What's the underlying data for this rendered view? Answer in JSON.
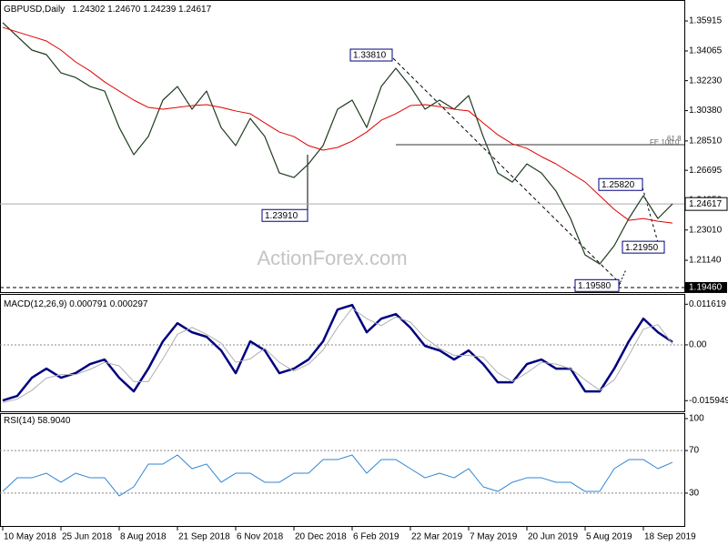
{
  "chart_data": [
    {
      "type": "line",
      "title": "GBPUSD,Daily",
      "subtitle": "1.24302 1.24670 1.24239 1.24617",
      "watermark": "ActionForex.com",
      "ylim": [
        1.1912,
        1.3721
      ],
      "yticks": [
        1.35915,
        1.34065,
        {
          "value": 1.3223,
          "label": "1.32230"
        },
        {
          "value": 1.3038,
          "label": "1.30380"
        },
        {
          "value": 1.2851,
          "label": "1.28510"
        },
        1.26695,
        {
          "value": 1.2485,
          "label": "1.24850"
        },
        {
          "value": 1.2301,
          "label": "1.23010"
        },
        {
          "value": 1.2114,
          "label": "1.21140"
        },
        {
          "value": 1.1946,
          "label": "1.19460"
        }
      ],
      "level_lines": [
        1.1946
      ],
      "last_price": 1.24617,
      "fe_level": {
        "value": 1.2828,
        "labels": [
          "61.8",
          "FE 100.0"
        ]
      },
      "annotations": [
        {
          "value": 1.3381,
          "label": "1.33810"
        },
        {
          "value": 1.2391,
          "label": "1.23910"
        },
        {
          "value": 1.2582,
          "label": "1.25820"
        },
        {
          "value": 1.2195,
          "label": "1.21950"
        },
        {
          "value": 1.1958,
          "label": "1.19580"
        }
      ],
      "series": [
        {
          "name": "GBPUSD",
          "color": "#1f3b1f",
          "line_width": 1.2,
          "values": [
            1.3581,
            1.3496,
            1.3412,
            1.3384,
            1.3271,
            1.3243,
            1.3187,
            1.3159,
            1.2934,
            1.2766,
            1.2878,
            1.3103,
            1.3187,
            1.3047,
            1.3159,
            1.2934,
            1.2822,
            1.299,
            1.2878,
            1.2653,
            1.2625,
            1.2709,
            1.2822,
            1.3047,
            1.3103,
            1.2934,
            1.3187,
            1.33,
            1.3187,
            1.3047,
            1.3103,
            1.3047,
            1.3131,
            1.2878,
            1.2653,
            1.2597,
            1.2709,
            1.2653,
            1.2541,
            1.2372,
            1.2147,
            1.2091,
            1.2204,
            1.2372,
            1.2513,
            1.2372,
            1.2462
          ]
        },
        {
          "name": "MA",
          "color": "#e00000",
          "line_width": 1,
          "values": [
            1.3552,
            1.3524,
            1.3496,
            1.3468,
            1.3412,
            1.3339,
            1.3283,
            1.3215,
            1.3159,
            1.3103,
            1.3058,
            1.3047,
            1.3058,
            1.3069,
            1.3075,
            1.3058,
            1.3036,
            1.3019,
            1.2962,
            1.2906,
            1.2878,
            1.2822,
            1.2794,
            1.2811,
            1.285,
            1.2906,
            1.2979,
            1.3019,
            1.3069,
            1.3075,
            1.3063,
            1.3047,
            1.3036,
            1.2962,
            1.2889,
            1.2833,
            1.2805,
            1.2754,
            1.2709,
            1.2653,
            1.2597,
            1.2513,
            1.2428,
            1.2361,
            1.2372,
            1.2355,
            1.2344
          ]
        }
      ]
    },
    {
      "type": "line",
      "title": "MACD(12,26,9) 0.000791 0.000297",
      "ylim": [
        -0.019,
        0.0143
      ],
      "yticks": [
        0.011619,
        {
          "value": 0,
          "label": "0.00"
        },
        -0.015949
      ],
      "level_lines": [
        0
      ],
      "series": [
        {
          "name": "MACD",
          "color": "#000080",
          "line_width": 2.5,
          "values": [
            -0.0159,
            -0.0146,
            -0.0094,
            -0.0068,
            -0.0094,
            -0.0081,
            -0.0055,
            -0.0042,
            -0.0094,
            -0.0133,
            -0.0068,
            0.001,
            0.0062,
            0.0036,
            0.0023,
            -0.0016,
            -0.0081,
            0.001,
            -0.0016,
            -0.0081,
            -0.0068,
            -0.0042,
            0.001,
            0.0101,
            0.0114,
            0.0036,
            0.0075,
            0.0088,
            0.0049,
            -0.0003,
            -0.0016,
            -0.0042,
            -0.0016,
            -0.0055,
            -0.0107,
            -0.0107,
            -0.0055,
            -0.0042,
            -0.0068,
            -0.0068,
            -0.0133,
            -0.0133,
            -0.0068,
            0.001,
            0.0075,
            0.0036,
            0.0008
          ]
        },
        {
          "name": "Signal",
          "color": "#b0b0b0",
          "line_width": 1,
          "values": [
            -0.0165,
            -0.0155,
            -0.013,
            -0.0095,
            -0.0085,
            -0.0085,
            -0.007,
            -0.005,
            -0.006,
            -0.0105,
            -0.0105,
            -0.004,
            0.003,
            0.005,
            0.003,
            0.0005,
            -0.005,
            -0.004,
            -0.001,
            -0.005,
            -0.0075,
            -0.0055,
            -0.0015,
            0.005,
            0.0105,
            0.0075,
            0.0055,
            0.008,
            0.0065,
            0.002,
            -0.001,
            -0.003,
            -0.003,
            -0.0035,
            -0.008,
            -0.0105,
            -0.008,
            -0.005,
            -0.0055,
            -0.0068,
            -0.01,
            -0.013,
            -0.01,
            -0.003,
            0.0045,
            0.0058,
            0.0003
          ]
        }
      ]
    },
    {
      "type": "line",
      "title": "RSI(14) 58.9040",
      "ylim": [
        0,
        100
      ],
      "yticks": [
        100,
        70,
        30
      ],
      "level_lines": [
        70,
        30
      ],
      "categories": [
        "10 May 2018",
        null,
        null,
        null,
        "25 Jun 2018",
        null,
        null,
        null,
        "8 Aug 2018",
        null,
        null,
        null,
        "21 Sep 2018",
        null,
        null,
        null,
        "6 Nov 2018",
        null,
        null,
        null,
        "20 Dec 2018",
        null,
        null,
        null,
        "6 Feb 2019",
        null,
        null,
        null,
        "22 Mar 2019",
        null,
        null,
        null,
        "7 May 2019",
        null,
        null,
        null,
        "20 Jun 2019",
        null,
        null,
        null,
        "5 Aug 2019",
        null,
        null,
        null,
        "18 Sep 2019",
        null,
        null
      ],
      "series": [
        {
          "name": "RSI",
          "color": "#2f86d6",
          "line_width": 1,
          "values": [
            31.6,
            44.4,
            44.4,
            48.7,
            40.2,
            48.7,
            44.4,
            44.4,
            27.4,
            35.9,
            57.3,
            57.3,
            65.8,
            53,
            57.3,
            40.2,
            48.7,
            48.7,
            40.2,
            40.2,
            48.7,
            48.7,
            61.5,
            61.5,
            65.8,
            48.7,
            61.5,
            61.5,
            53,
            44.4,
            48.7,
            44.4,
            53,
            35.9,
            31.6,
            40.2,
            44.4,
            44.4,
            40.2,
            40.2,
            31.6,
            31.6,
            53,
            61.5,
            61.5,
            53,
            58.9
          ]
        }
      ]
    }
  ]
}
